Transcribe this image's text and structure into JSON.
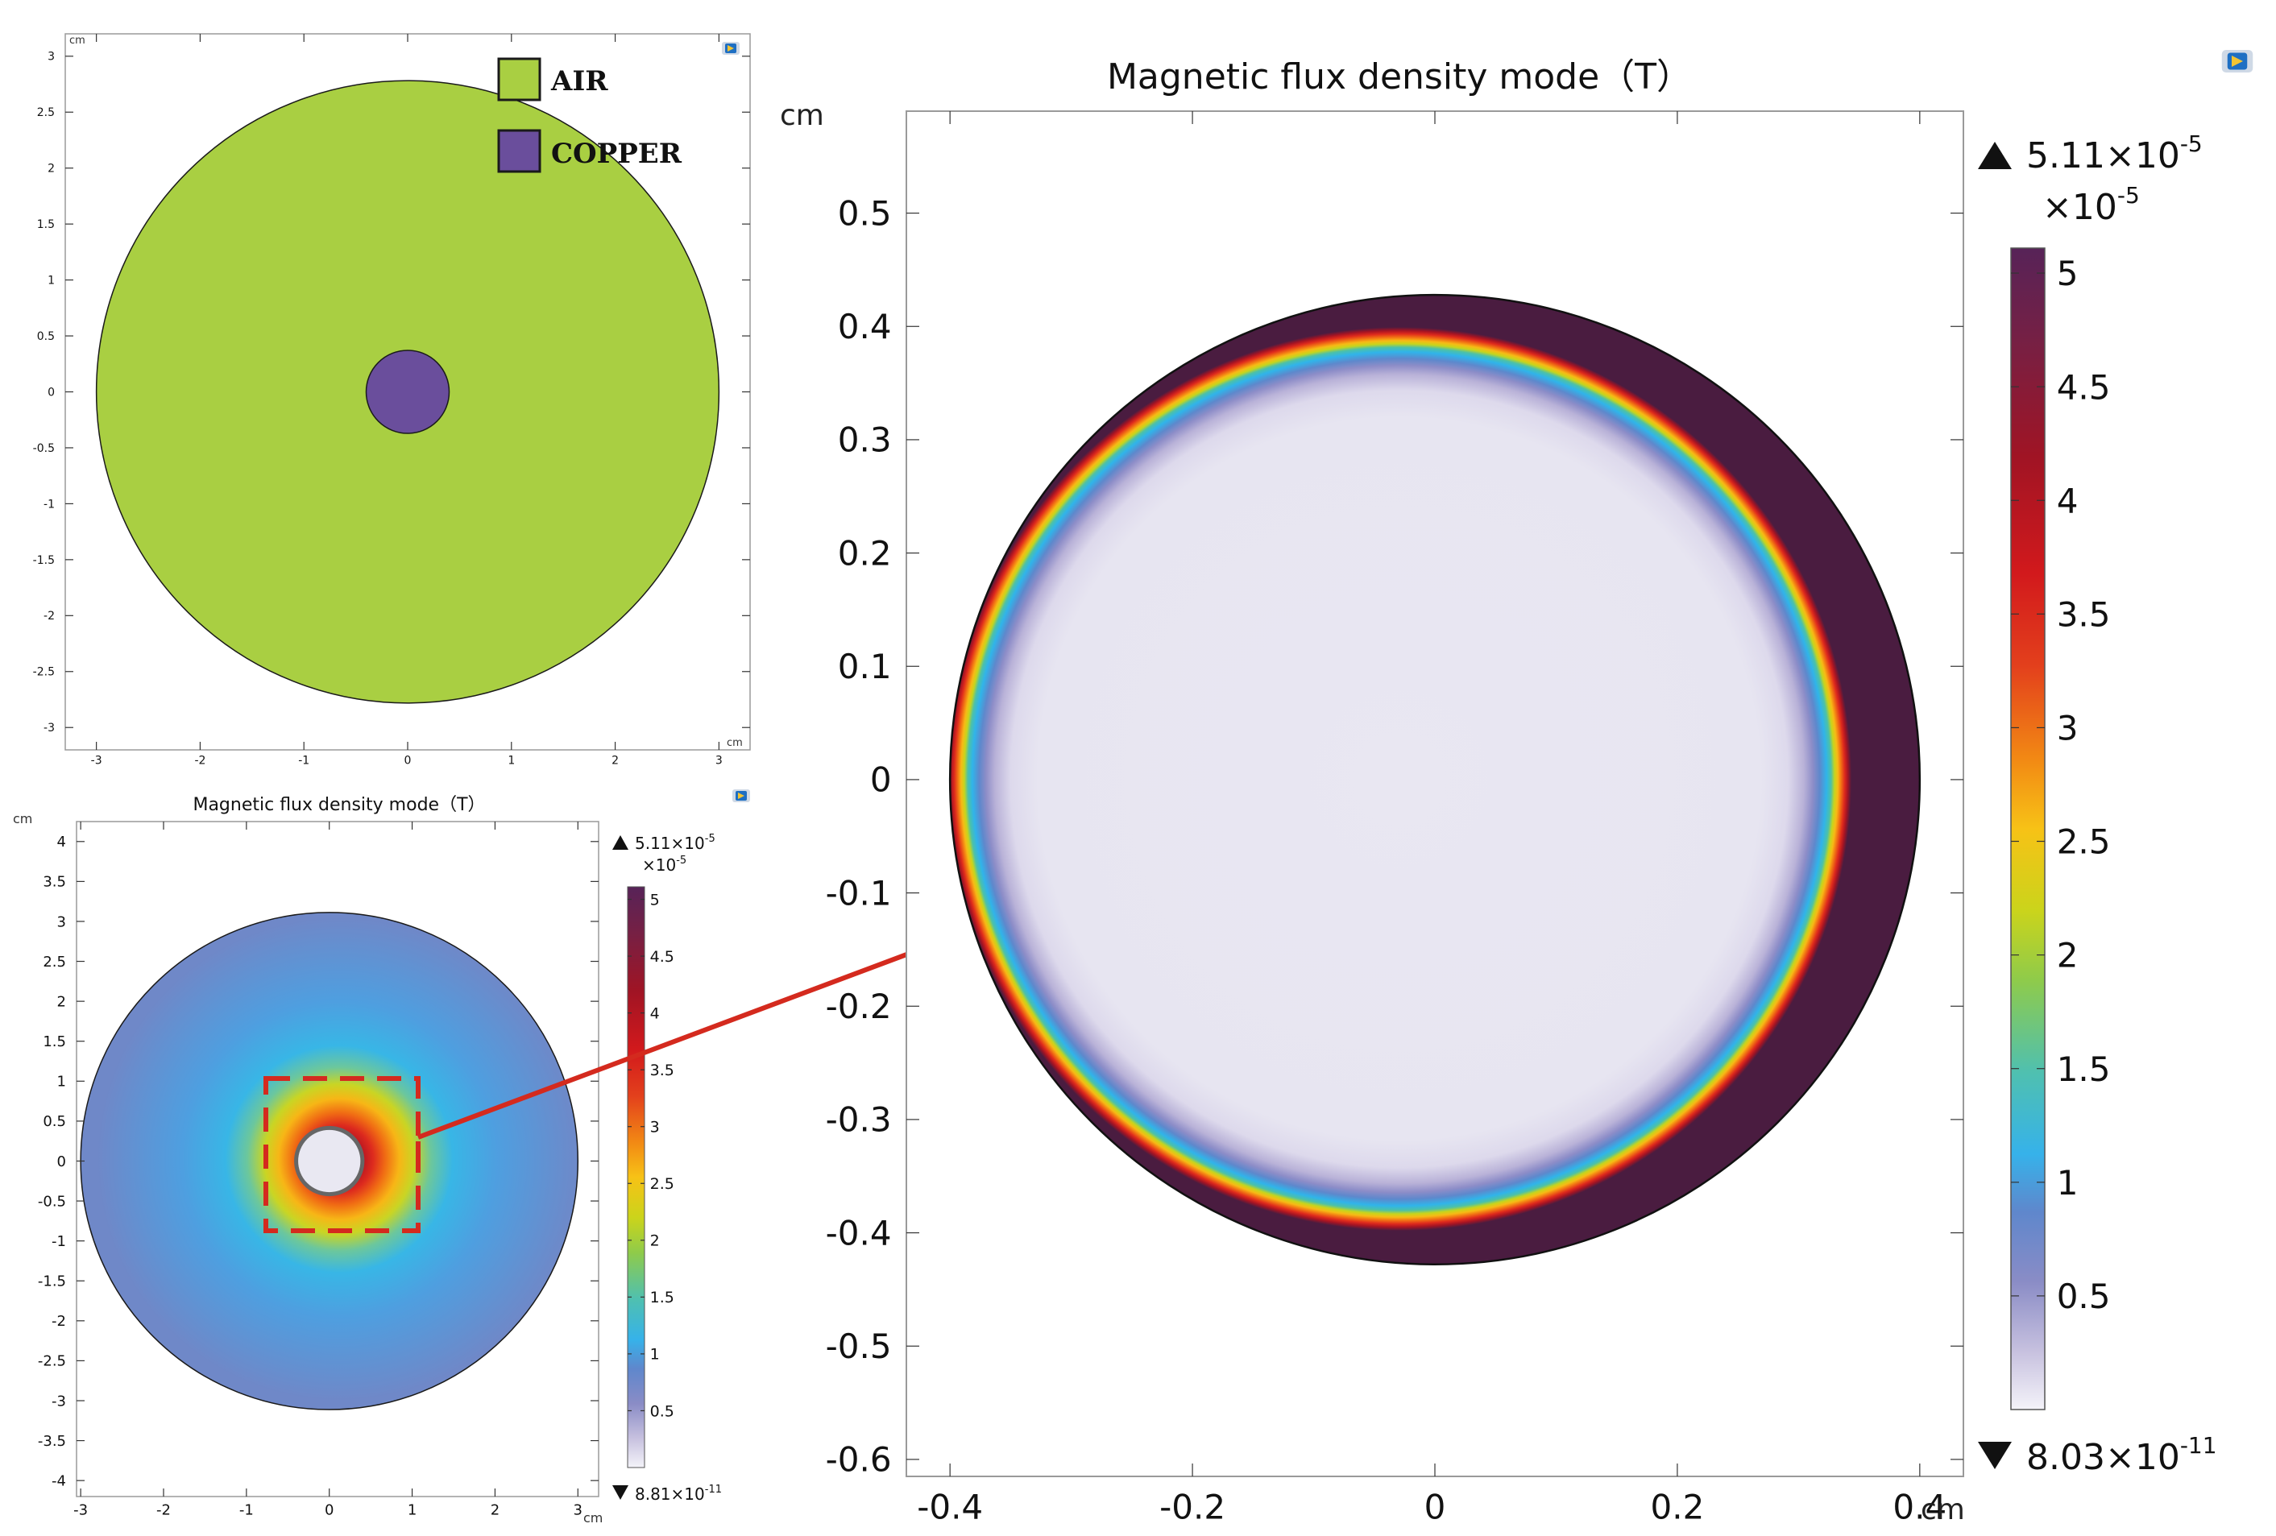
{
  "colors": {
    "air": "#a9cf42",
    "copper": "#6a4e9c",
    "outline": "#1a1a1a",
    "arrow": "#d42a1e",
    "colormap": [
      "#f2f1f7",
      "#6b7bc6",
      "#33b4ea",
      "#52c1a1",
      "#c3d51c",
      "#f6c018",
      "#f07a12",
      "#e02c1c",
      "#b01320",
      "#5e1d4f"
    ]
  },
  "icons": {
    "panel_a": "comsol-logo-icon",
    "panel_b": "comsol-logo-icon",
    "panel_c": "comsol-logo-icon",
    "max_marker": "triangle-up-icon",
    "min_marker": "triangle-down-icon"
  },
  "geometry_panel": {
    "unit_top": "cm",
    "unit_right": "cm",
    "legend": [
      {
        "label": "AIR",
        "color": "#a9cf42"
      },
      {
        "label": "COPPER",
        "color": "#6a4e9c"
      }
    ],
    "xticks": [
      "-3",
      "-2",
      "-1",
      "0",
      "1",
      "2",
      "3"
    ],
    "yticks": [
      "3",
      "2.5",
      "2",
      "1.5",
      "1",
      "0.5",
      "0",
      "-0.5",
      "-1",
      "-1.5",
      "-2",
      "-2.5",
      "-3"
    ],
    "xrange": [
      -3.3,
      3.3
    ],
    "yrange": [
      -3.2,
      3.2
    ],
    "air_radius": 3,
    "copper_radius": 0.4
  },
  "small_panel": {
    "title": "Magnetic flux density mode（T）",
    "unit_top": "cm",
    "unit_right": "cm",
    "xticks": [
      "-3",
      "-2",
      "-1",
      "0",
      "1",
      "2",
      "3"
    ],
    "yticks": [
      "4",
      "3.5",
      "3",
      "2.5",
      "2",
      "1.5",
      "1",
      "0.5",
      "0",
      "-0.5",
      "-1",
      "-1.5",
      "-2",
      "-2.5",
      "-3",
      "-3.5",
      "-4"
    ],
    "xrange": [
      -3.05,
      3.25
    ],
    "yrange": [
      -4.2,
      4.25
    ],
    "colorbar_max": "5.11×10",
    "colorbar_max_exp": "-5",
    "colorbar_scale": "×10",
    "colorbar_scale_exp": "-5",
    "colorbar_min": "8.81×10",
    "colorbar_min_exp": "-11",
    "colorbar_ticks": [
      "5",
      "4.5",
      "4",
      "3.5",
      "3",
      "2.5",
      "2",
      "1.5",
      "1",
      "0.5"
    ]
  },
  "large_panel": {
    "title": "Magnetic flux density mode（T）",
    "unit_top": "cm",
    "unit_right": "cm",
    "xticks": [
      "-0.4",
      "-0.2",
      "0",
      "0.2",
      "0.4"
    ],
    "yticks": [
      "0.5",
      "0.4",
      "0.3",
      "0.2",
      "0.1",
      "0",
      "-0.1",
      "-0.2",
      "-0.3",
      "-0.4",
      "-0.5",
      "-0.6"
    ],
    "xrange": [
      -0.436,
      0.436
    ],
    "yrange": [
      -0.615,
      0.59
    ],
    "copper_radius": 0.4,
    "colorbar_max": "5.11×10",
    "colorbar_max_exp": "-5",
    "colorbar_scale": "×10",
    "colorbar_scale_exp": "-5",
    "colorbar_min": "8.03×10",
    "colorbar_min_exp": "-11",
    "colorbar_ticks": [
      "5",
      "4.5",
      "4",
      "3.5",
      "3",
      "2.5",
      "2",
      "1.5",
      "1",
      "0.5"
    ]
  }
}
